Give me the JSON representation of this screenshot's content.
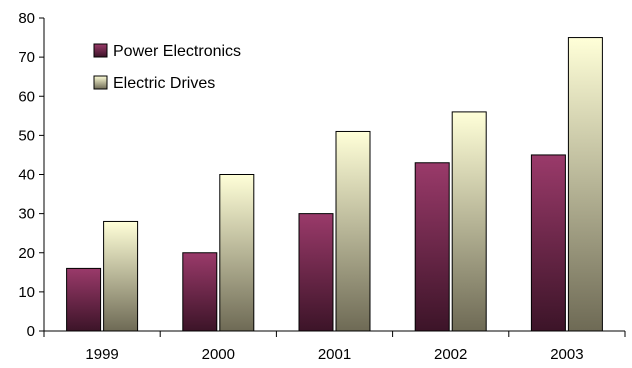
{
  "chart_data": {
    "type": "bar",
    "categories": [
      "1999",
      "2000",
      "2001",
      "2002",
      "2003"
    ],
    "series": [
      {
        "name": "Power Electronics",
        "values": [
          16,
          20,
          30,
          43,
          45
        ]
      },
      {
        "name": "Electric Drives",
        "values": [
          28,
          40,
          51,
          56,
          75
        ]
      }
    ],
    "title": "",
    "xlabel": "",
    "ylabel": "",
    "ylim": [
      0,
      80
    ],
    "yticks": [
      0,
      10,
      20,
      30,
      40,
      50,
      60,
      70,
      80
    ],
    "grid": false,
    "legend_position": "top-left",
    "colors": {
      "power_top": "#9a3a6a",
      "power_bottom": "#3c1428",
      "drives_top": "#ffffd8",
      "drives_bottom": "#6e6a55"
    }
  }
}
